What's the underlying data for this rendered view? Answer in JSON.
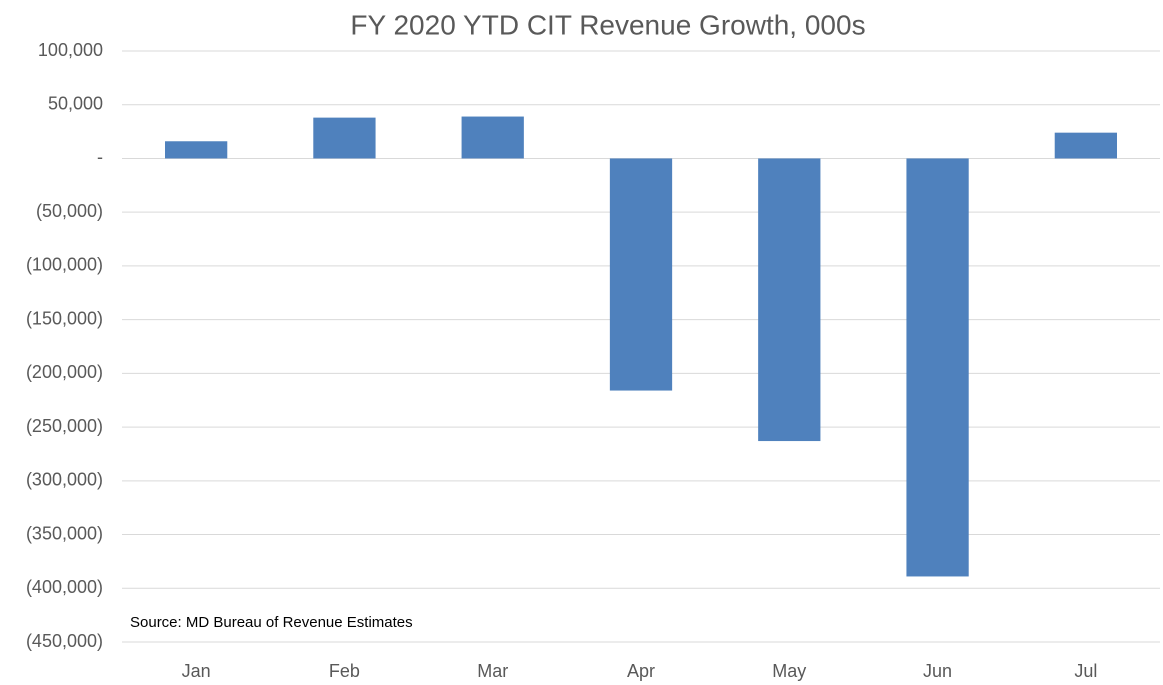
{
  "chart_data": {
    "type": "bar",
    "title": "FY 2020 YTD CIT Revenue Growth, 000s",
    "categories": [
      "Jan",
      "Feb",
      "Mar",
      "Apr",
      "May",
      "Jun",
      "Jul"
    ],
    "values": [
      16000,
      38000,
      39000,
      -216000,
      -263000,
      -389000,
      24000
    ],
    "color": "#4f81bd",
    "ylim": [
      -450000,
      100000
    ],
    "yticks": [
      {
        "value": 100000,
        "label": "100,000"
      },
      {
        "value": 50000,
        "label": "50,000"
      },
      {
        "value": 0,
        "label": "-"
      },
      {
        "value": -50000,
        "label": "(50,000)"
      },
      {
        "value": -100000,
        "label": "(100,000)"
      },
      {
        "value": -150000,
        "label": "(150,000)"
      },
      {
        "value": -200000,
        "label": "(200,000)"
      },
      {
        "value": -250000,
        "label": "(250,000)"
      },
      {
        "value": -300000,
        "label": "(300,000)"
      },
      {
        "value": -350000,
        "label": "(350,000)"
      },
      {
        "value": -400000,
        "label": "(400,000)"
      },
      {
        "value": -450000,
        "label": "(450,000)"
      }
    ],
    "grid": true,
    "annotation": "Source: MD Bureau of Revenue Estimates"
  }
}
